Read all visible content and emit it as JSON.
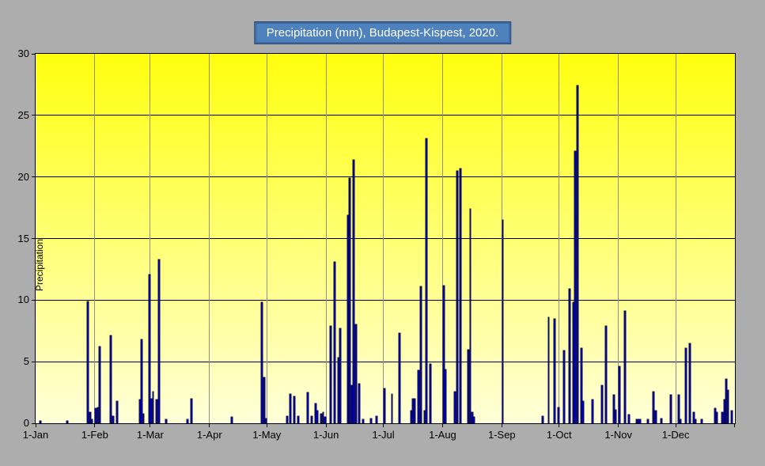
{
  "title": "Precipitation (mm), Budapest-Kispest, 2020.",
  "colors": {
    "page_bg": "#adadad",
    "plot_gradient_top": "#ffff0e",
    "plot_gradient_bottom": "#ffffd9",
    "bar_fill": "#0202a6",
    "bar_edge": "#000000",
    "h_gridline": "#000000",
    "v_gridline": "#8f8f8f",
    "axis": "#000000",
    "title_bg": "#4f81bd",
    "title_border": "#3a6aa5",
    "title_outline": "#27476e",
    "title_text": "#ffffff"
  },
  "chart_data": {
    "type": "bar",
    "title": "Precipitation (mm), Budapest-Kispest, 2020.",
    "xlabel": "",
    "ylabel": "Precipitation",
    "ylim": [
      0,
      30
    ],
    "yticks": [
      0,
      5,
      10,
      15,
      20,
      25,
      30
    ],
    "grid": "both",
    "legend": "none",
    "x_span_days": 366,
    "month_days": [
      31,
      29,
      31,
      30,
      31,
      30,
      31,
      31,
      30,
      31,
      30,
      31
    ],
    "xtick_labels": [
      "1-Jan",
      "1-Feb",
      "1-Mar",
      "1-Apr",
      "1-May",
      "1-Jun",
      "1-Jul",
      "1-Aug",
      "1-Sep",
      "1-Oct",
      "1-Nov",
      "1-Dec"
    ],
    "points": [
      {
        "date": "Jan 3",
        "day": 3,
        "mm": 0.2
      },
      {
        "date": "Jan 17",
        "day": 17,
        "mm": 0.2
      },
      {
        "date": "Jan 28",
        "day": 28,
        "mm": 9.9
      },
      {
        "date": "Jan 29",
        "day": 29,
        "mm": 0.9
      },
      {
        "date": "Jan 30",
        "day": 30,
        "mm": 0.3
      },
      {
        "date": "Feb 1",
        "day": 32,
        "mm": 1.2
      },
      {
        "date": "Feb 2",
        "day": 33,
        "mm": 1.3
      },
      {
        "date": "Feb 3",
        "day": 34,
        "mm": 6.2
      },
      {
        "date": "Feb 9",
        "day": 40,
        "mm": 7.1
      },
      {
        "date": "Feb 10",
        "day": 41,
        "mm": 0.6
      },
      {
        "date": "Feb 12",
        "day": 43,
        "mm": 1.8
      },
      {
        "date": "Feb 24",
        "day": 55,
        "mm": 1.9
      },
      {
        "date": "Feb 25",
        "day": 56,
        "mm": 6.8
      },
      {
        "date": "Feb 26",
        "day": 57,
        "mm": 0.8
      },
      {
        "date": "Feb 29",
        "day": 60,
        "mm": 12.1
      },
      {
        "date": "Mar 1",
        "day": 61,
        "mm": 2.0
      },
      {
        "date": "Mar 2",
        "day": 62,
        "mm": 2.6
      },
      {
        "date": "Mar 4",
        "day": 64,
        "mm": 1.9
      },
      {
        "date": "Mar 5",
        "day": 65,
        "mm": 13.3
      },
      {
        "date": "Mar 9",
        "day": 69,
        "mm": 0.3
      },
      {
        "date": "Mar 20",
        "day": 80,
        "mm": 0.3
      },
      {
        "date": "Mar 22",
        "day": 82,
        "mm": 2.0
      },
      {
        "date": "Apr 12",
        "day": 103,
        "mm": 0.5
      },
      {
        "date": "Apr 28",
        "day": 119,
        "mm": 9.8
      },
      {
        "date": "Apr 29",
        "day": 120,
        "mm": 3.7
      },
      {
        "date": "Apr 30",
        "day": 121,
        "mm": 0.4
      },
      {
        "date": "May 11",
        "day": 132,
        "mm": 0.6
      },
      {
        "date": "May 13",
        "day": 134,
        "mm": 2.4
      },
      {
        "date": "May 15",
        "day": 136,
        "mm": 2.2
      },
      {
        "date": "May 17",
        "day": 138,
        "mm": 0.6
      },
      {
        "date": "May 22",
        "day": 143,
        "mm": 2.5
      },
      {
        "date": "May 24",
        "day": 145,
        "mm": 0.6
      },
      {
        "date": "May 26",
        "day": 147,
        "mm": 1.6
      },
      {
        "date": "May 27",
        "day": 148,
        "mm": 1.0
      },
      {
        "date": "May 29",
        "day": 150,
        "mm": 0.8
      },
      {
        "date": "May 30",
        "day": 151,
        "mm": 0.9
      },
      {
        "date": "May 31",
        "day": 152,
        "mm": 0.5
      },
      {
        "date": "Jun 3",
        "day": 155,
        "mm": 7.9
      },
      {
        "date": "Jun 5",
        "day": 157,
        "mm": 13.1
      },
      {
        "date": "Jun 7",
        "day": 159,
        "mm": 5.3
      },
      {
        "date": "Jun 8",
        "day": 160,
        "mm": 7.7
      },
      {
        "date": "Jun 12",
        "day": 164,
        "mm": 16.9
      },
      {
        "date": "Jun 13",
        "day": 165,
        "mm": 19.9
      },
      {
        "date": "Jun 14",
        "day": 166,
        "mm": 3.1
      },
      {
        "date": "Jun 15",
        "day": 167,
        "mm": 21.4
      },
      {
        "date": "Jun 16",
        "day": 168,
        "mm": 8.0
      },
      {
        "date": "Jun 18",
        "day": 170,
        "mm": 3.2
      },
      {
        "date": "Jun 20",
        "day": 172,
        "mm": 0.3
      },
      {
        "date": "Jun 24",
        "day": 176,
        "mm": 0.4
      },
      {
        "date": "Jun 27",
        "day": 179,
        "mm": 0.6
      },
      {
        "date": "Jul 1",
        "day": 183,
        "mm": 2.8
      },
      {
        "date": "Jul 5",
        "day": 187,
        "mm": 2.4
      },
      {
        "date": "Jul 9",
        "day": 191,
        "mm": 7.3
      },
      {
        "date": "Jul 15",
        "day": 197,
        "mm": 1.0
      },
      {
        "date": "Jul 16",
        "day": 198,
        "mm": 2.0
      },
      {
        "date": "Jul 17",
        "day": 199,
        "mm": 2.0
      },
      {
        "date": "Jul 19",
        "day": 201,
        "mm": 4.3
      },
      {
        "date": "Jul 20",
        "day": 202,
        "mm": 11.1
      },
      {
        "date": "Jul 22",
        "day": 204,
        "mm": 1.0
      },
      {
        "date": "Jul 23",
        "day": 205,
        "mm": 23.1
      },
      {
        "date": "Jul 25",
        "day": 207,
        "mm": 4.8
      },
      {
        "date": "Aug 1",
        "day": 214,
        "mm": 11.2
      },
      {
        "date": "Aug 2",
        "day": 215,
        "mm": 4.4
      },
      {
        "date": "Aug 7",
        "day": 220,
        "mm": 2.6
      },
      {
        "date": "Aug 8",
        "day": 221,
        "mm": 20.5
      },
      {
        "date": "Aug 10",
        "day": 223,
        "mm": 20.7
      },
      {
        "date": "Aug 14",
        "day": 227,
        "mm": 6.0
      },
      {
        "date": "Aug 15",
        "day": 228,
        "mm": 17.4
      },
      {
        "date": "Aug 16",
        "day": 229,
        "mm": 0.9
      },
      {
        "date": "Aug 17",
        "day": 230,
        "mm": 0.5
      },
      {
        "date": "Sep 1",
        "day": 245,
        "mm": 16.5
      },
      {
        "date": "Sep 22",
        "day": 266,
        "mm": 0.6
      },
      {
        "date": "Sep 25",
        "day": 269,
        "mm": 8.6
      },
      {
        "date": "Sep 28",
        "day": 272,
        "mm": 8.5
      },
      {
        "date": "Sep 30",
        "day": 274,
        "mm": 1.3
      },
      {
        "date": "Oct 3",
        "day": 277,
        "mm": 5.9
      },
      {
        "date": "Oct 6",
        "day": 280,
        "mm": 10.9
      },
      {
        "date": "Oct 8",
        "day": 282,
        "mm": 9.8
      },
      {
        "date": "Oct 9",
        "day": 283,
        "mm": 22.1
      },
      {
        "date": "Oct 10",
        "day": 284,
        "mm": 27.4
      },
      {
        "date": "Oct 12",
        "day": 286,
        "mm": 6.1
      },
      {
        "date": "Oct 13",
        "day": 287,
        "mm": 1.8
      },
      {
        "date": "Oct 18",
        "day": 292,
        "mm": 1.9
      },
      {
        "date": "Oct 23",
        "day": 297,
        "mm": 3.1
      },
      {
        "date": "Oct 25",
        "day": 299,
        "mm": 7.9
      },
      {
        "date": "Oct 29",
        "day": 303,
        "mm": 2.3
      },
      {
        "date": "Oct 30",
        "day": 304,
        "mm": 1.1
      },
      {
        "date": "Nov 1",
        "day": 306,
        "mm": 4.6
      },
      {
        "date": "Nov 4",
        "day": 309,
        "mm": 9.1
      },
      {
        "date": "Nov 6",
        "day": 311,
        "mm": 0.7
      },
      {
        "date": "Nov 10",
        "day": 315,
        "mm": 0.3
      },
      {
        "date": "Nov 11",
        "day": 316,
        "mm": 0.3
      },
      {
        "date": "Nov 12",
        "day": 317,
        "mm": 0.3
      },
      {
        "date": "Nov 16",
        "day": 321,
        "mm": 0.3
      },
      {
        "date": "Nov 19",
        "day": 324,
        "mm": 2.6
      },
      {
        "date": "Nov 20",
        "day": 325,
        "mm": 1.0
      },
      {
        "date": "Nov 23",
        "day": 328,
        "mm": 0.4
      },
      {
        "date": "Nov 28",
        "day": 333,
        "mm": 2.3
      },
      {
        "date": "Dec 2",
        "day": 337,
        "mm": 2.3
      },
      {
        "date": "Dec 3",
        "day": 338,
        "mm": 0.3
      },
      {
        "date": "Dec 6",
        "day": 341,
        "mm": 6.1
      },
      {
        "date": "Dec 8",
        "day": 343,
        "mm": 6.5
      },
      {
        "date": "Dec 10",
        "day": 345,
        "mm": 0.9
      },
      {
        "date": "Dec 11",
        "day": 346,
        "mm": 0.3
      },
      {
        "date": "Dec 14",
        "day": 349,
        "mm": 0.3
      },
      {
        "date": "Dec 21",
        "day": 356,
        "mm": 1.2
      },
      {
        "date": "Dec 22",
        "day": 357,
        "mm": 0.9
      },
      {
        "date": "Dec 25",
        "day": 360,
        "mm": 0.9
      },
      {
        "date": "Dec 26",
        "day": 361,
        "mm": 1.9
      },
      {
        "date": "Dec 27",
        "day": 362,
        "mm": 3.6
      },
      {
        "date": "Dec 28",
        "day": 363,
        "mm": 2.7
      },
      {
        "date": "Dec 30",
        "day": 365,
        "mm": 1.0
      }
    ]
  }
}
